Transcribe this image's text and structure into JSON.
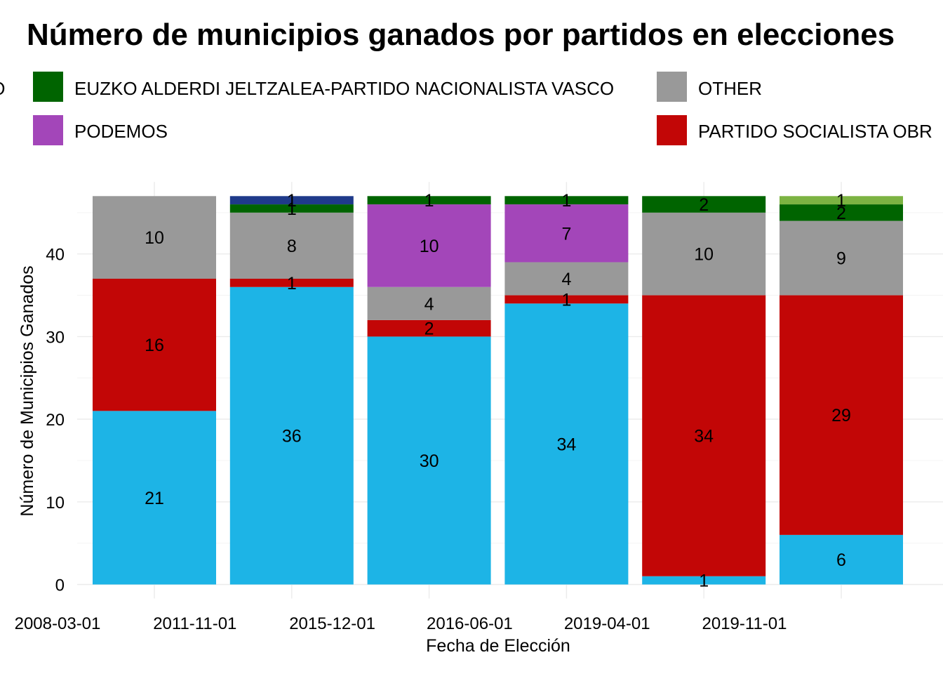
{
  "chart_data": {
    "type": "bar",
    "stacked": true,
    "title": "Número de municipios ganados por partidos en elecciones",
    "xlabel": "Fecha de Elección",
    "ylabel": "Número de Municipios Ganados",
    "ylim": [
      0,
      47
    ],
    "yticks": [
      0,
      10,
      20,
      30,
      40
    ],
    "grid": true,
    "legend_position": "top",
    "x_tick_labels": [
      "2008-03-01",
      "2011-11-01",
      "2015-12-01",
      "2016-06-01",
      "2019-04-01",
      "2019-11-01"
    ],
    "categories": [
      "2008-03-01",
      "2011-11-01",
      "2015-12-01",
      "2016-06-01",
      "2019-04-01",
      "2019-11-01"
    ],
    "legend": [
      {
        "label": "IO",
        "color": "#1DB4E6"
      },
      {
        "label": "EUZKO ALDERDI JELTZALEA-PARTIDO NACIONALISTA VASCO",
        "color": "#006400"
      },
      {
        "label": "OTHER",
        "color": "#999999"
      },
      {
        "label": "PODEMOS",
        "color": "#A346B9"
      },
      {
        "label": "PARTIDO SOCIALISTA OBR",
        "color": "#C20606"
      }
    ],
    "series": [
      {
        "color": "#1DB4E6",
        "values": [
          21,
          36,
          30,
          34,
          1,
          6
        ]
      },
      {
        "color": "#C20606",
        "values": [
          16,
          1,
          2,
          1,
          34,
          29
        ]
      },
      {
        "color": "#999999",
        "values": [
          10,
          8,
          4,
          4,
          10,
          9
        ]
      },
      {
        "color": "#A346B9",
        "values": [
          0,
          0,
          10,
          7,
          0,
          0
        ]
      },
      {
        "color": "#006400",
        "values": [
          0,
          1,
          1,
          1,
          2,
          2
        ]
      },
      {
        "color": "#1F3A8A",
        "values": [
          0,
          1,
          0,
          0,
          0,
          0
        ]
      },
      {
        "color": "#7CB342",
        "values": [
          0,
          0,
          0,
          0,
          0,
          1
        ]
      }
    ]
  }
}
